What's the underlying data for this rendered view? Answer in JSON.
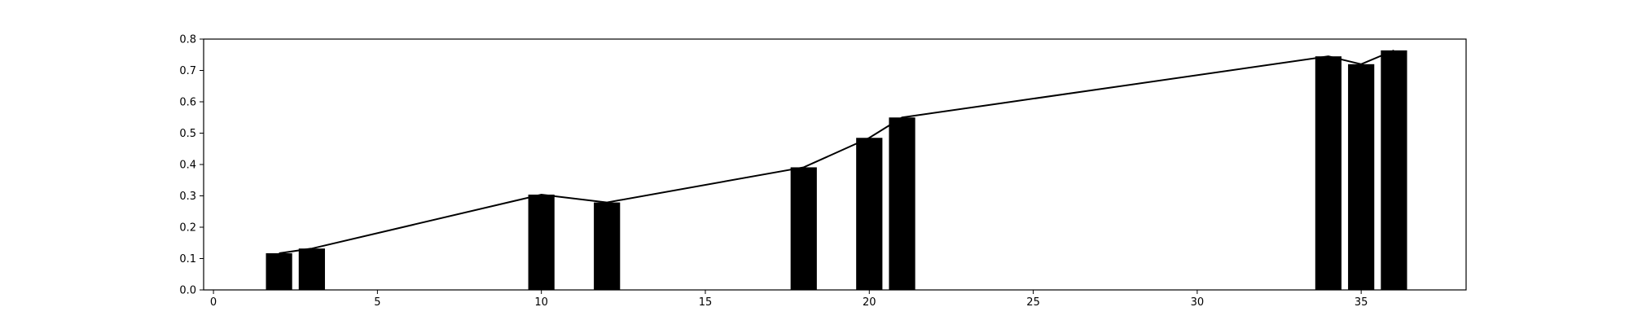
{
  "chart_data": {
    "type": "bar",
    "title": "",
    "xlabel": "",
    "ylabel": "",
    "xlim": [
      -0.3,
      38.2
    ],
    "ylim": [
      0.0,
      0.8
    ],
    "grid": false,
    "x_ticks": [
      0,
      5,
      10,
      15,
      20,
      25,
      30,
      35
    ],
    "y_ticks": [
      0.0,
      0.1,
      0.2,
      0.3,
      0.4,
      0.5,
      0.6,
      0.7,
      0.8
    ],
    "x_tick_labels": [
      "0",
      "5",
      "10",
      "15",
      "20",
      "25",
      "30",
      "35"
    ],
    "y_tick_labels": [
      "0.0",
      "0.1",
      "0.2",
      "0.3",
      "0.4",
      "0.5",
      "0.6",
      "0.7",
      "0.8"
    ],
    "bar_width": 0.8,
    "series": [
      {
        "values": [
          {
            "x": 2,
            "y": 0.117
          },
          {
            "x": 3,
            "y": 0.132
          },
          {
            "x": 10,
            "y": 0.304
          },
          {
            "x": 12,
            "y": 0.279
          },
          {
            "x": 18,
            "y": 0.391
          },
          {
            "x": 20,
            "y": 0.485
          },
          {
            "x": 21,
            "y": 0.55
          },
          {
            "x": 34,
            "y": 0.745
          },
          {
            "x": 35,
            "y": 0.72
          },
          {
            "x": 36,
            "y": 0.764
          }
        ]
      }
    ],
    "colors": {
      "bar": "#000000",
      "line": "#000000",
      "axes": "#000000",
      "background": "#ffffff"
    }
  }
}
